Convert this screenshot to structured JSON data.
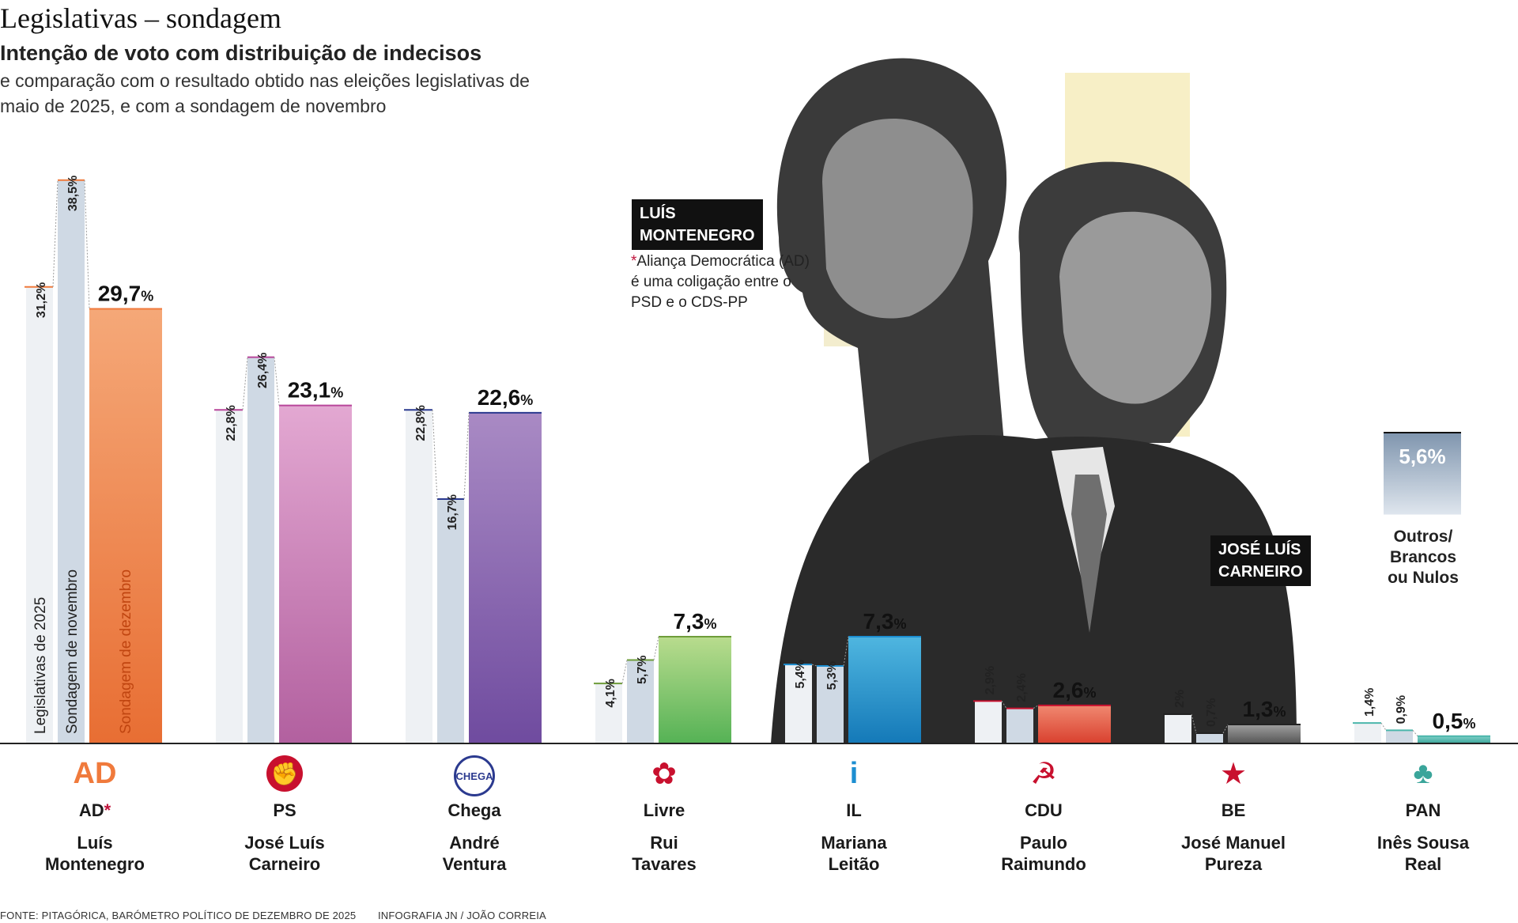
{
  "header": {
    "title": "Legislativas – sondagem",
    "subtitle": "Intenção de voto com distribuição de indecisos",
    "description": "e comparação com o resultado obtido nas eleições legislativas de maio de 2025, e com a sondagem de novembro"
  },
  "note": {
    "asterisk": "*",
    "text": "Aliança Democrática (AD) é uma coligação entre o PSD e o CDS-PP"
  },
  "name_tags": {
    "montenegro_line1": "LUÍS",
    "montenegro_line2": "MONTENEGRO",
    "carneiro_line1": "JOSÉ LUÍS",
    "carneiro_line2": "CARNEIRO"
  },
  "others": {
    "value_label": "5,6%",
    "value": 5.6,
    "line1": "Outros/",
    "line2": "Brancos",
    "line3": "ou Nulos"
  },
  "footer": {
    "source": "FONTE: PITAGÓRICA, BARÓMETRO POLÍTICO DE DEZEMBRO DE 2025",
    "credit": "INFOGRAFIA JN / JOÃO CORREIA"
  },
  "chart_data": {
    "type": "bar",
    "series_labels": [
      "Legislativas de 2025",
      "Sondagem de novembro",
      "Sondagem de dezembro"
    ],
    "parties": [
      {
        "party": "AD",
        "asterisk": "*",
        "leader_line1": "Luís",
        "leader_line2": "Montenegro",
        "values": [
          31.2,
          38.5,
          29.7
        ],
        "labels": [
          "31,2%",
          "38,5%",
          "29,7"
        ],
        "color_top": "#f5a878",
        "color_bottom": "#e86e33",
        "accent": "#f07a3c"
      },
      {
        "party": "PS",
        "asterisk": "",
        "leader_line1": "José Luís",
        "leader_line2": "Carneiro",
        "values": [
          22.8,
          26.4,
          23.1
        ],
        "labels": [
          "22,8%",
          "26,4%",
          "23,1"
        ],
        "color_top": "#e3a8d2",
        "color_bottom": "#b2609f",
        "accent": "#b8469a"
      },
      {
        "party": "Chega",
        "asterisk": "",
        "leader_line1": "André",
        "leader_line2": "Ventura",
        "values": [
          22.8,
          16.7,
          22.6
        ],
        "labels": [
          "22,8%",
          "16,7%",
          "22,6"
        ],
        "color_top": "#a98ac4",
        "color_bottom": "#6f4b9f",
        "accent": "#2b3a8f"
      },
      {
        "party": "Livre",
        "asterisk": "",
        "leader_line1": "Rui",
        "leader_line2": "Tavares",
        "values": [
          4.1,
          5.7,
          7.3
        ],
        "labels": [
          "4,1%",
          "5,7%",
          "7,3"
        ],
        "color_top": "#b9dc8e",
        "color_bottom": "#55b255",
        "accent": "#6e9c3a"
      },
      {
        "party": "IL",
        "asterisk": "",
        "leader_line1": "Mariana",
        "leader_line2": "Leitão",
        "values": [
          5.4,
          5.3,
          7.3
        ],
        "labels": [
          "5,4%",
          "5,3%",
          "7,3"
        ],
        "color_top": "#4fb6e0",
        "color_bottom": "#1479b8",
        "accent": "#1c8ed1"
      },
      {
        "party": "CDU",
        "asterisk": "",
        "leader_line1": "Paulo",
        "leader_line2": "Raimundo",
        "values": [
          2.9,
          2.4,
          2.6
        ],
        "labels": [
          "2,9%",
          "2,4%",
          "2,6"
        ],
        "color_top": "#f08870",
        "color_bottom": "#d9402e",
        "accent": "#c8102e"
      },
      {
        "party": "BE",
        "asterisk": "",
        "leader_line1": "José Manuel",
        "leader_line2": "Pureza",
        "values": [
          2.0,
          0.7,
          1.3
        ],
        "labels": [
          "2%",
          "0,7%",
          "1,3"
        ],
        "color_top": "#a0a0a0",
        "color_bottom": "#555555",
        "accent": "#222222"
      },
      {
        "party": "PAN",
        "asterisk": "",
        "leader_line1": "Inês Sousa",
        "leader_line2": "Real",
        "values": [
          1.4,
          0.9,
          0.5
        ],
        "labels": [
          "1,4%",
          "0,9%",
          "0,5"
        ],
        "color_top": "#7fd0c8",
        "color_bottom": "#3aa59a",
        "accent": "#4bb6ab"
      }
    ],
    "percent_sign": "%",
    "ylim": [
      0,
      40
    ]
  },
  "colors": {
    "bar_light_2025": "#eef1f4",
    "bar_light_nov": "#cfd9e4",
    "axis": "#222222",
    "photo_tint": "#f7efc6"
  }
}
